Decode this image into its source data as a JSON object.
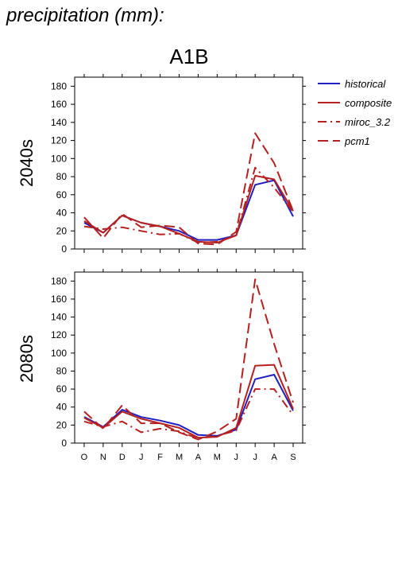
{
  "page": {
    "title": "precipitation (mm):",
    "scenario": "A1B"
  },
  "colors": {
    "historical": "#1f1fbf",
    "model": "#b52020"
  },
  "chart_data": [
    {
      "type": "line",
      "panel_label": "2040s",
      "months": [
        "O",
        "N",
        "D",
        "J",
        "F",
        "M",
        "A",
        "M",
        "J",
        "J",
        "A",
        "S"
      ],
      "ylim": [
        0,
        190
      ],
      "yticks": [
        0,
        20,
        40,
        60,
        80,
        100,
        120,
        140,
        160,
        180
      ],
      "grid": false,
      "series": [
        {
          "name": "historical",
          "dash": "solid",
          "color": "#1f1fbf",
          "values": [
            29,
            18,
            37,
            29,
            25,
            20,
            10,
            10,
            15,
            71,
            76,
            36
          ]
        },
        {
          "name": "composite",
          "dash": "solid",
          "color": "#b52020",
          "values": [
            31,
            18,
            37,
            29,
            25,
            17,
            8,
            7,
            15,
            81,
            77,
            42
          ]
        },
        {
          "name": "miroc_3.2",
          "dash": "dashdot",
          "color": "#b52020",
          "values": [
            25,
            22,
            24,
            20,
            16,
            17,
            7,
            8,
            15,
            90,
            68,
            41
          ]
        },
        {
          "name": "pcm1",
          "dash": "dashed",
          "color": "#b52020",
          "values": [
            35,
            12,
            39,
            24,
            26,
            24,
            6,
            5,
            19,
            128,
            95,
            42
          ]
        }
      ]
    },
    {
      "type": "line",
      "panel_label": "2080s",
      "months": [
        "O",
        "N",
        "D",
        "J",
        "F",
        "M",
        "A",
        "M",
        "J",
        "J",
        "A",
        "S"
      ],
      "ylim": [
        0,
        190
      ],
      "yticks": [
        0,
        20,
        40,
        60,
        80,
        100,
        120,
        140,
        160,
        180
      ],
      "grid": false,
      "series": [
        {
          "name": "historical",
          "dash": "solid",
          "color": "#1f1fbf",
          "values": [
            29,
            18,
            37,
            29,
            25,
            20,
            9,
            8,
            15,
            71,
            76,
            36
          ]
        },
        {
          "name": "composite",
          "dash": "solid",
          "color": "#b52020",
          "values": [
            28,
            17,
            35,
            27,
            22,
            17,
            6,
            7,
            17,
            86,
            87,
            38
          ]
        },
        {
          "name": "miroc_3.2",
          "dash": "dashdot",
          "color": "#b52020",
          "values": [
            24,
            18,
            24,
            12,
            16,
            13,
            5,
            8,
            14,
            60,
            60,
            31
          ]
        },
        {
          "name": "pcm1",
          "dash": "dashed",
          "color": "#b52020",
          "values": [
            35,
            16,
            42,
            22,
            22,
            12,
            4,
            13,
            27,
            182,
            110,
            45
          ]
        }
      ]
    }
  ],
  "legend": [
    {
      "name": "historical",
      "dash": "solid",
      "color": "#1f1fbf"
    },
    {
      "name": "composite",
      "dash": "solid",
      "color": "#b52020"
    },
    {
      "name": "miroc_3.2",
      "dash": "dashdot",
      "color": "#b52020"
    },
    {
      "name": "pcm1",
      "dash": "dashed",
      "color": "#b52020"
    }
  ]
}
